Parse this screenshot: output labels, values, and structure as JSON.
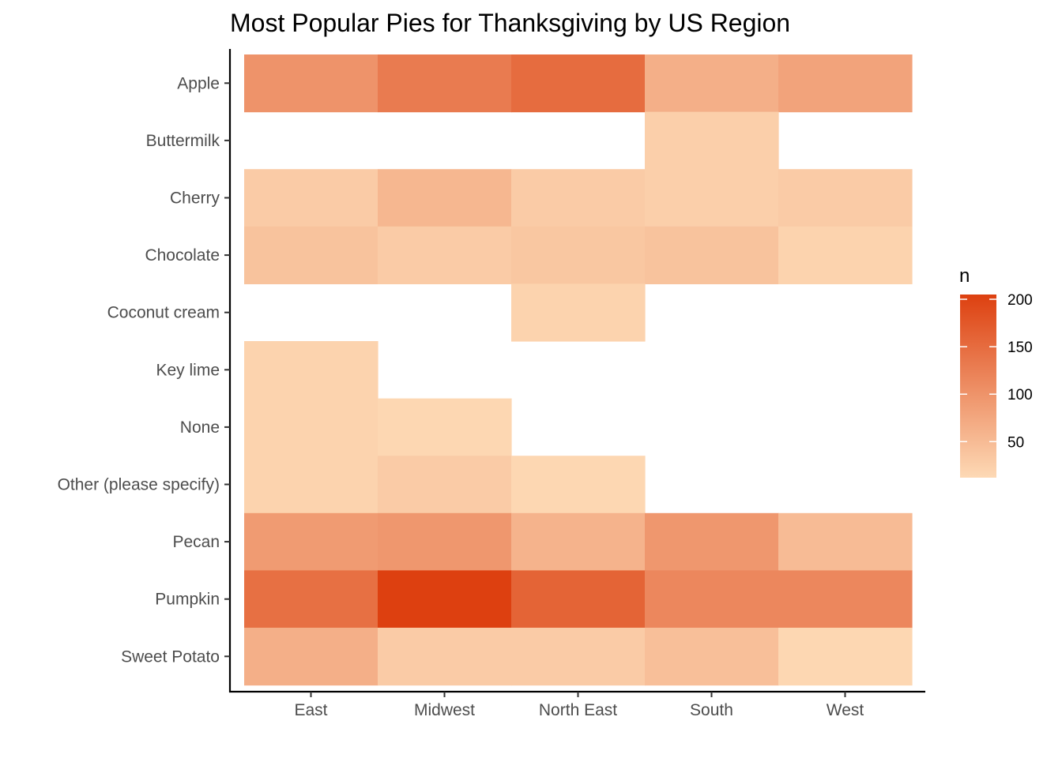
{
  "chart_data": {
    "type": "heatmap",
    "title": "Most Popular Pies for Thanksgiving by US Region",
    "xlabel": "",
    "ylabel": "",
    "x_categories": [
      "East",
      "Midwest",
      "North East",
      "South",
      "West"
    ],
    "y_categories": [
      "Apple",
      "Buttermilk",
      "Cherry",
      "Chocolate",
      "Coconut cream",
      "Key lime",
      "None",
      "Other (please specify)",
      "Pecan",
      "Pumpkin",
      "Sweet Potato"
    ],
    "values": [
      [
        100,
        130,
        150,
        65,
        80
      ],
      [
        null,
        null,
        null,
        25,
        null
      ],
      [
        30,
        55,
        30,
        25,
        30
      ],
      [
        40,
        30,
        35,
        40,
        20
      ],
      [
        null,
        null,
        20,
        null,
        null
      ],
      [
        20,
        null,
        null,
        null,
        null
      ],
      [
        20,
        15,
        null,
        null,
        null
      ],
      [
        20,
        30,
        15,
        null,
        null
      ],
      [
        90,
        95,
        60,
        95,
        50
      ],
      [
        145,
        205,
        160,
        115,
        115
      ],
      [
        65,
        30,
        30,
        45,
        15
      ]
    ],
    "color_scale": {
      "low": "#fdd9b5",
      "high": "#dd4010",
      "min": 12,
      "max": 205
    },
    "legend": {
      "title": "n",
      "ticks": [
        200,
        150,
        100,
        50
      ],
      "placement": "right"
    },
    "grid": false
  }
}
